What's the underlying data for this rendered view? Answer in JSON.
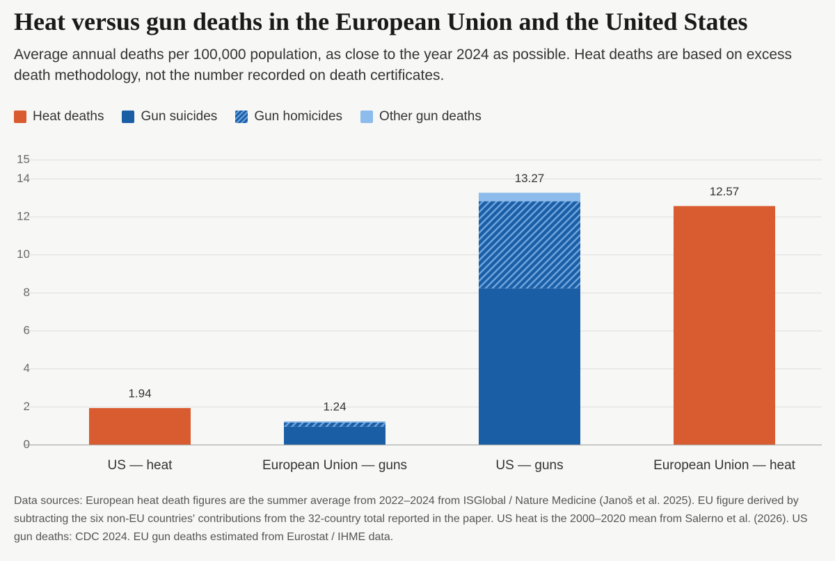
{
  "chart_data": {
    "type": "stacked-bar",
    "title": "Heat versus gun deaths in the European Union and the United States",
    "subtitle": "Average annual deaths per 100,000 population, as close to the year 2024 as possible. Heat deaths are based on excess death methodology, not the number recorded on death certificates.",
    "categories": [
      "US — heat",
      "European Union — guns",
      "US — guns",
      "European Union — heat"
    ],
    "series": [
      {
        "name": "Heat deaths",
        "color": "#d95b30",
        "values": [
          1.94,
          null,
          null,
          12.57
        ]
      },
      {
        "name": "Gun suicides",
        "color": "#1a5ea6",
        "values": [
          null,
          0.96,
          8.24,
          null
        ]
      },
      {
        "name": "Gun homicides",
        "color": "#1a5ea6",
        "hatch": true,
        "values": [
          null,
          0.22,
          4.58,
          null
        ]
      },
      {
        "name": "Other gun deaths",
        "color": "#8cbbec",
        "values": [
          null,
          0.06,
          0.45,
          null
        ]
      }
    ],
    "totals": [
      1.94,
      1.24,
      13.27,
      12.57
    ],
    "ylim": [
      0,
      15
    ],
    "yticks": [
      0,
      2,
      4,
      6,
      8,
      10,
      12,
      14,
      15
    ],
    "grid": true,
    "source": "Data sources: European heat death figures are the summer average from 2022–2024 from ISGlobal / Nature Medicine (Janoš et al. 2025). EU figure derived by subtracting the six non-EU countries' contributions from the 32-country total reported in the paper. US heat is the 2000–2020 mean from Salerno et al. (2026). US gun deaths: CDC 2024. EU gun deaths estimated from Eurostat / IHME data."
  }
}
